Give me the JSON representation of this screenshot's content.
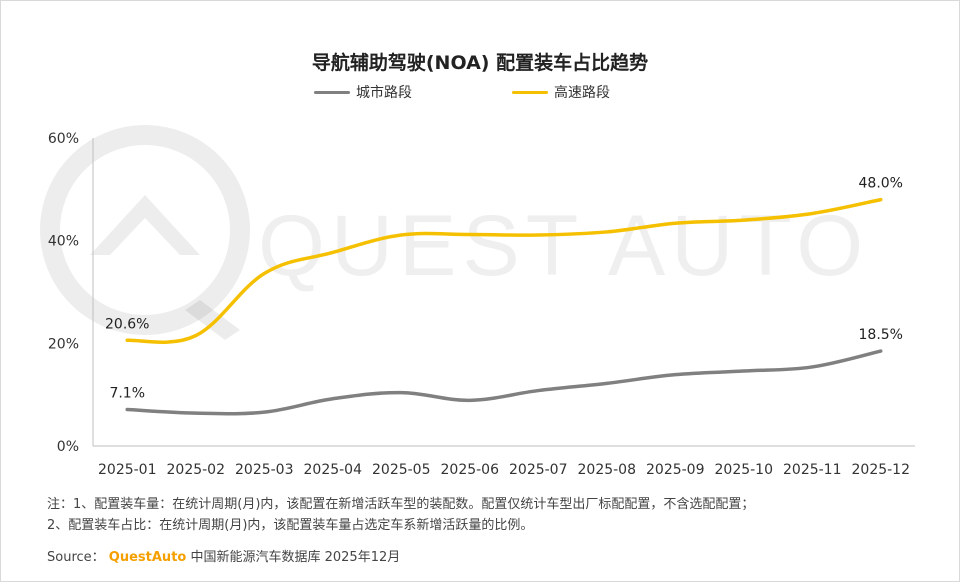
{
  "header": {
    "title": "导航辅助驾驶(NOA)  配置装车占比趋势"
  },
  "watermark": {
    "text": "QUEST AUTO"
  },
  "notes": {
    "line1": "注：1、配置装车量：在统计周期(月)内，该配置在新增活跃车型的装配数。配置仅统计车型出厂标配配置，不含选配配置；",
    "line2": "2、配置装车占比：在统计周期(月)内，该配置装车量占选定车系新增活跃量的比例。"
  },
  "source": {
    "prefix": "Source：",
    "brand": "QuestAuto",
    "suffix": "中国新能源汽车数据库  2025年12月"
  },
  "chart_data": {
    "type": "line",
    "title": "导航辅助驾驶(NOA)  配置装车占比趋势",
    "categories": [
      "2025-01",
      "2025-02",
      "2025-03",
      "2025-04",
      "2025-05",
      "2025-06",
      "2025-07",
      "2025-08",
      "2025-09",
      "2025-10",
      "2025-11",
      "2025-12"
    ],
    "y_ticks": [
      "0%",
      "20%",
      "40%",
      "60%"
    ],
    "ylim": [
      0,
      60
    ],
    "grid": false,
    "legend_position": "top",
    "series": [
      {
        "name": "城市路段",
        "color": "#808080",
        "values": [
          7.1,
          6.4,
          6.6,
          9.2,
          10.4,
          8.9,
          10.8,
          12.2,
          13.9,
          14.6,
          15.4,
          18.5
        ],
        "labels": {
          "0": "7.1%",
          "11": "18.5%"
        }
      },
      {
        "name": "高速路段",
        "color": "#f5c000",
        "values": [
          20.6,
          21.5,
          33.6,
          37.7,
          41.1,
          41.2,
          41.1,
          41.7,
          43.4,
          44.0,
          45.3,
          48.0
        ],
        "labels": {
          "0": "20.6%",
          "11": "48.0%"
        }
      }
    ]
  }
}
